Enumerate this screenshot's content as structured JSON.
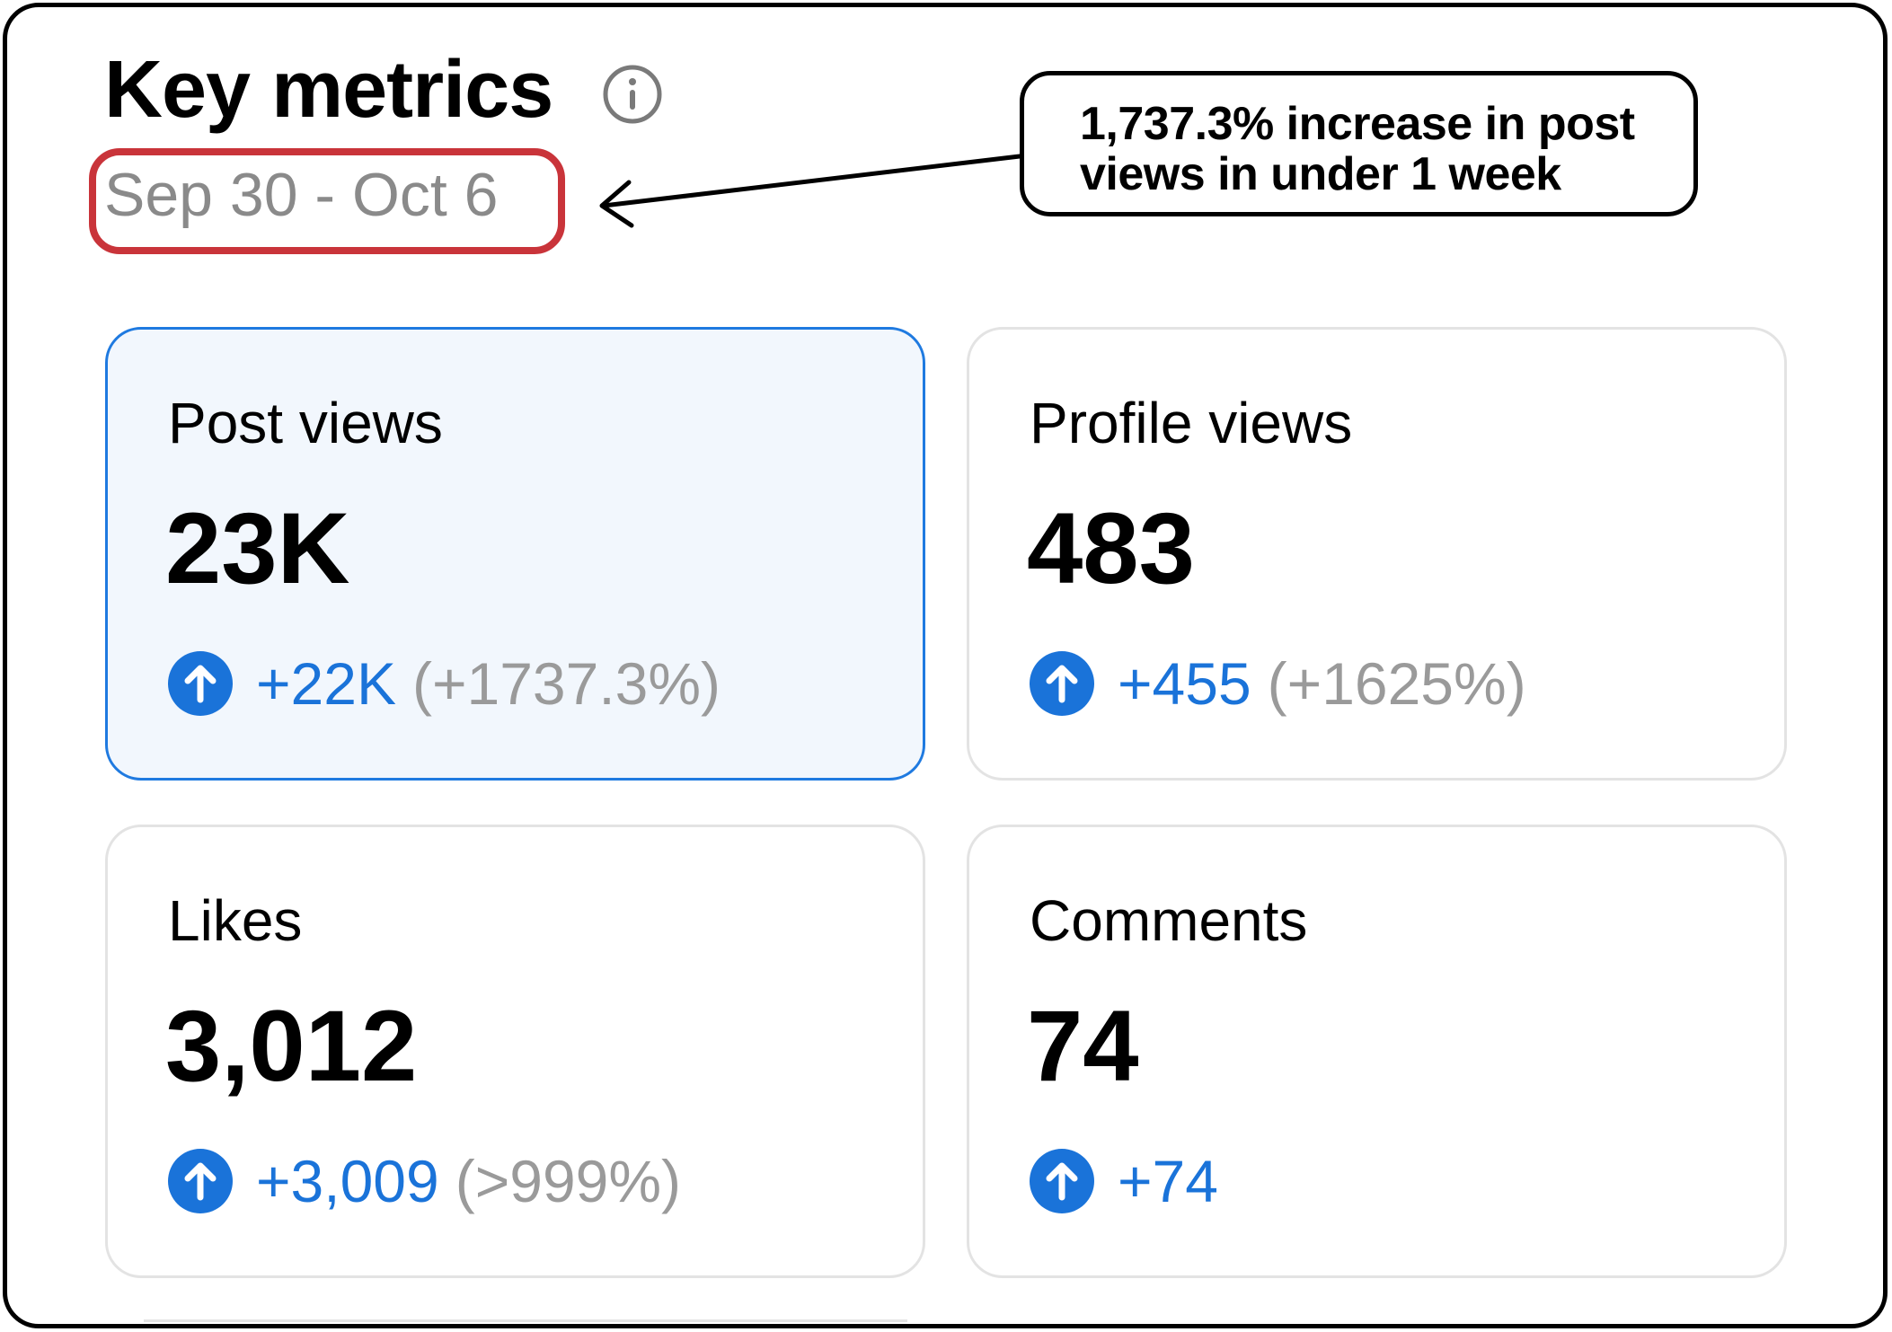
{
  "header": {
    "title": "Key metrics",
    "date_range": "Sep 30 - Oct 6"
  },
  "annotation": {
    "line1": "1,737.3% increase in post",
    "line2": "views in under 1 week",
    "highlight_color": "#c9343a"
  },
  "colors": {
    "accent": "#1a73d9",
    "selected_border": "#1f7ae0",
    "selected_bg": "#f2f7fd",
    "muted_text": "#8a8a8a"
  },
  "metrics": [
    {
      "label": "Post views",
      "value": "23K",
      "delta": "+22K",
      "percent": "(+1737.3%)",
      "selected": true,
      "icon": "arrow-up-circle-icon"
    },
    {
      "label": "Profile views",
      "value": "483",
      "delta": "+455",
      "percent": "(+1625%)",
      "selected": false,
      "icon": "arrow-up-circle-icon"
    },
    {
      "label": "Likes",
      "value": "3,012",
      "delta": "+3,009",
      "percent": "(>999%)",
      "selected": false,
      "icon": "arrow-up-circle-icon"
    },
    {
      "label": "Comments",
      "value": "74",
      "delta": "+74",
      "percent": "",
      "selected": false,
      "icon": "arrow-up-circle-icon"
    }
  ]
}
